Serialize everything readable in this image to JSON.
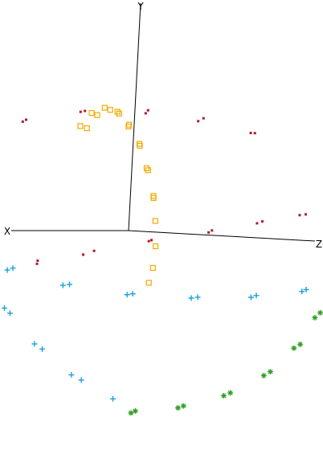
{
  "chart_data": {
    "type": "scatter",
    "projection": "3d",
    "title": "",
    "axes": {
      "x": {
        "label": "X"
      },
      "y": {
        "label": "Y"
      },
      "z": {
        "label": "Z"
      }
    },
    "grid": false,
    "legend": "none",
    "series": [
      {
        "marker": "dot",
        "color": "#b2182b",
        "points": [
          [
            -0.72,
            0.99,
            0.41
          ],
          [
            -0.43,
            1.13,
            0.24
          ],
          [
            -0.13,
            1.2,
            0.04
          ],
          [
            0.17,
            1.18,
            -0.24
          ],
          [
            0.45,
            1.08,
            -0.5
          ],
          [
            0.69,
            0.92,
            -0.69
          ],
          [
            0.88,
            0.69,
            -0.86
          ],
          [
            0.99,
            0.43,
            -0.91
          ],
          [
            1.0,
            0.2,
            -0.98
          ],
          [
            0.97,
            -0.05,
            -0.9
          ],
          [
            0.85,
            -0.24,
            -0.84
          ],
          [
            0.68,
            -0.35,
            -0.66
          ],
          [
            0.44,
            -0.35,
            -0.4
          ],
          [
            0.2,
            -0.25,
            -0.22
          ],
          [
            -0.08,
            -0.1,
            0.11
          ],
          [
            -0.36,
            0.0,
            0.38
          ],
          [
            -0.61,
            0.1,
            0.57
          ],
          [
            -0.82,
            0.19,
            0.75
          ],
          [
            -0.96,
            0.26,
            0.88
          ],
          [
            -1.0,
            0.3,
            0.93
          ],
          [
            -0.71,
            0.99,
            0.38
          ],
          [
            -0.41,
            1.1,
            0.21
          ],
          [
            -0.11,
            1.17,
            0.04
          ],
          [
            0.19,
            1.17,
            -0.26
          ],
          [
            0.47,
            1.06,
            -0.51
          ],
          [
            0.7,
            0.91,
            -0.69
          ],
          [
            0.88,
            0.68,
            -0.85
          ],
          [
            0.98,
            0.43,
            -0.93
          ],
          [
            1.0,
            0.18,
            -0.97
          ],
          [
            0.95,
            -0.04,
            -0.92
          ],
          [
            0.83,
            -0.22,
            -0.8
          ],
          [
            0.65,
            -0.34,
            -0.65
          ],
          [
            0.41,
            -0.32,
            -0.43
          ],
          [
            0.15,
            -0.21,
            -0.17
          ],
          [
            -0.11,
            -0.09,
            0.1
          ],
          [
            -0.38,
            0.02,
            0.39
          ],
          [
            -0.63,
            0.12,
            0.6
          ],
          [
            -0.83,
            0.2,
            0.8
          ],
          [
            -0.96,
            0.27,
            0.91
          ],
          [
            -1.0,
            0.3,
            0.95
          ]
        ]
      },
      {
        "marker": "square",
        "color": "#f2a900",
        "points": [
          [
            0.72,
            1.06,
            0.4
          ],
          [
            0.45,
            1.18,
            0.18
          ],
          [
            0.15,
            1.22,
            -0.06
          ],
          [
            -0.14,
            1.17,
            -0.29
          ],
          [
            -0.42,
            1.03,
            -0.52
          ],
          [
            -0.65,
            0.83,
            -0.7
          ],
          [
            -0.83,
            0.58,
            -0.85
          ],
          [
            -0.95,
            0.3,
            -0.93
          ],
          [
            -0.99,
            0.05,
            -0.96
          ],
          [
            -0.96,
            -0.2,
            -0.92
          ],
          [
            -0.85,
            -0.41,
            -0.81
          ],
          [
            -0.68,
            -0.55,
            -0.64
          ],
          [
            0.69,
            1.04,
            0.43
          ],
          [
            0.42,
            1.16,
            0.2
          ],
          [
            0.12,
            1.2,
            -0.04
          ],
          [
            -0.17,
            1.15,
            -0.31
          ],
          [
            -0.44,
            1.01,
            -0.55
          ],
          [
            -0.67,
            0.81,
            -0.72
          ],
          [
            -0.85,
            0.56,
            -0.86
          ],
          [
            -0.96,
            0.28,
            -0.94
          ]
        ]
      },
      {
        "marker": "asterisk",
        "color": "#2e9e1f",
        "points": [
          [
            -0.98,
            -0.45,
            0.88
          ],
          [
            -0.95,
            -0.78,
            0.8
          ],
          [
            -0.88,
            -1.1,
            0.68
          ],
          [
            -0.76,
            -1.38,
            0.52
          ],
          [
            -0.58,
            -1.6,
            0.33
          ],
          [
            -0.36,
            -1.74,
            0.12
          ],
          [
            -0.12,
            -1.8,
            -0.08
          ],
          [
            -0.96,
            -0.5,
            0.86
          ],
          [
            -0.93,
            -0.83,
            0.77
          ],
          [
            -0.86,
            -1.14,
            0.64
          ],
          [
            -0.73,
            -1.42,
            0.49
          ],
          [
            -0.55,
            -1.63,
            0.3
          ],
          [
            -0.33,
            -1.76,
            0.1
          ],
          [
            -0.1,
            -1.82,
            -0.1
          ]
        ]
      },
      {
        "marker": "plus",
        "color": "#1aa0e0",
        "points": [
          [
            -0.85,
            -0.55,
            0.78
          ],
          [
            -0.62,
            -0.62,
            0.55
          ],
          [
            -0.35,
            -0.65,
            0.28
          ],
          [
            -0.05,
            -0.63,
            -0.02
          ],
          [
            0.25,
            -0.55,
            -0.3
          ],
          [
            0.52,
            -0.4,
            -0.55
          ],
          [
            0.75,
            -0.2,
            -0.75
          ],
          [
            0.55,
            -0.8,
            -0.6
          ],
          [
            0.42,
            -1.15,
            -0.45
          ],
          [
            0.25,
            -1.45,
            -0.28
          ],
          [
            0.05,
            -1.68,
            -0.1
          ],
          [
            -0.83,
            -0.57,
            0.76
          ],
          [
            -0.6,
            -0.64,
            0.52
          ],
          [
            -0.32,
            -0.66,
            0.25
          ],
          [
            -0.02,
            -0.64,
            -0.04
          ],
          [
            0.28,
            -0.56,
            -0.33
          ],
          [
            0.55,
            -0.42,
            -0.57
          ],
          [
            0.52,
            -0.85,
            -0.58
          ],
          [
            0.38,
            -1.2,
            -0.42
          ],
          [
            0.2,
            -1.5,
            -0.24
          ]
        ]
      }
    ]
  }
}
